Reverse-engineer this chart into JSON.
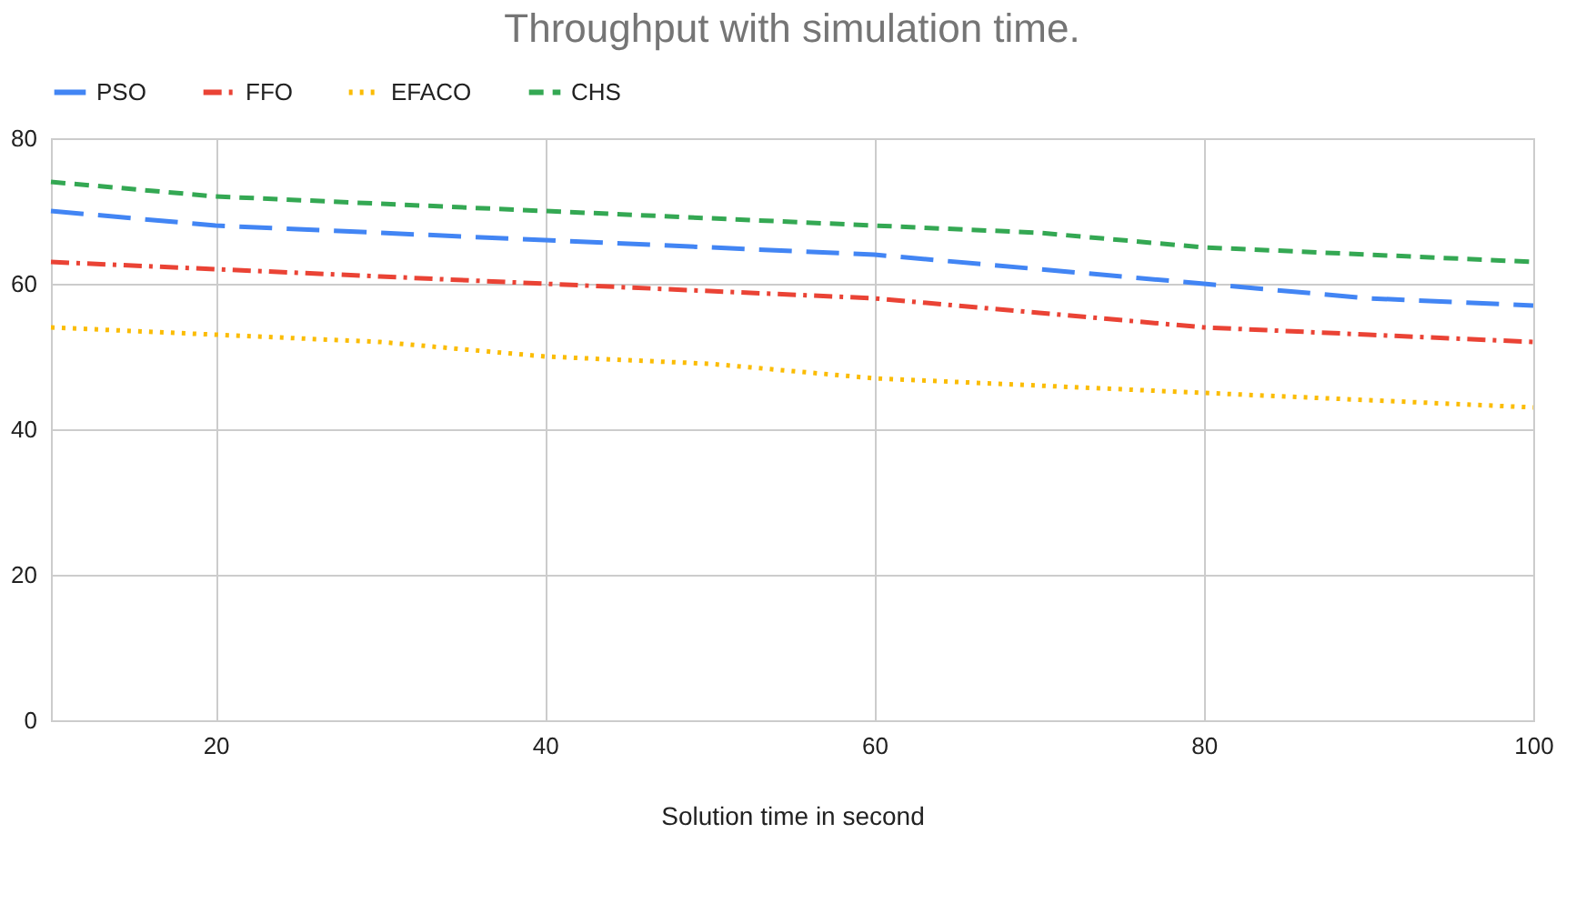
{
  "chart_data": {
    "type": "line",
    "title": "Throughput with simulation time.",
    "xlabel": "Solution time in second",
    "x": [
      10,
      20,
      30,
      40,
      50,
      60,
      70,
      80,
      90,
      100
    ],
    "series": [
      {
        "name": "PSO",
        "color": "#4285f4",
        "line_style": "longdash",
        "values": [
          70,
          68,
          67,
          66,
          65,
          64,
          62,
          60,
          58,
          57
        ]
      },
      {
        "name": "FFO",
        "color": "#ea4335",
        "line_style": "dashdot",
        "values": [
          63,
          62,
          61,
          60,
          59,
          58,
          56,
          54,
          53,
          52
        ]
      },
      {
        "name": "EFACO",
        "color": "#fbbc04",
        "line_style": "dotted",
        "values": [
          54,
          53,
          52,
          50,
          49,
          47,
          46,
          45,
          44,
          43
        ]
      },
      {
        "name": "CHS",
        "color": "#34a853",
        "line_style": "dashed",
        "values": [
          74,
          72,
          71,
          70,
          69,
          68,
          67,
          65,
          64,
          63
        ]
      }
    ],
    "xlim": [
      10,
      100
    ],
    "xticks": [
      20,
      40,
      60,
      80,
      100
    ],
    "ylim": [
      0,
      80
    ],
    "yticks": [
      0,
      20,
      40,
      60,
      80
    ],
    "grid": true,
    "legend": "top",
    "marker": "none"
  }
}
